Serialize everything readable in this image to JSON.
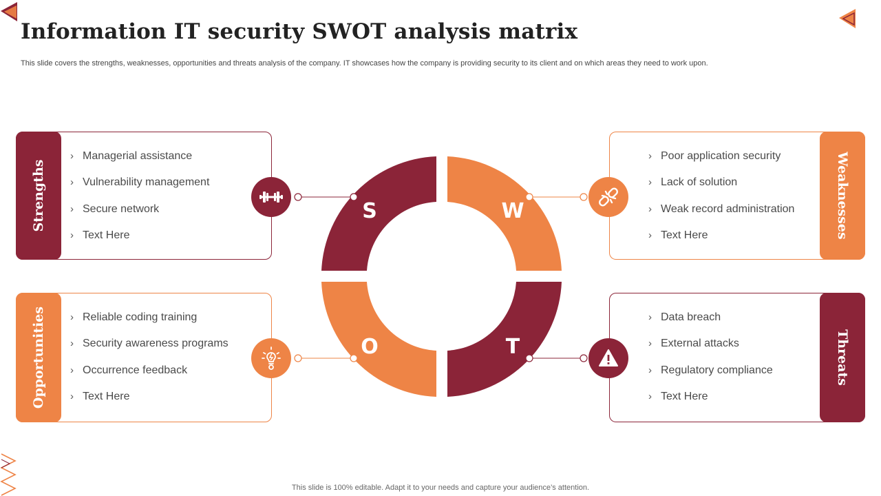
{
  "title": "Information IT security SWOT analysis matrix",
  "subtitle": "This slide covers the strengths, weaknesses, opportunities and threats analysis of the company. IT showcases how the company is providing security to its client and on which areas they need to work upon.",
  "footer": "This slide is 100% editable. Adapt it to your needs and capture your audience’s attention.",
  "colors": {
    "maroon": "#8b2438",
    "orange": "#ee8446"
  },
  "quadrants": {
    "strengths": {
      "label": "Strengths",
      "letter": "S",
      "color": "#8b2438",
      "icon": "dumbbell-icon",
      "items": [
        "Managerial assistance",
        "Vulnerability management",
        "Secure network",
        "Text Here"
      ]
    },
    "weaknesses": {
      "label": "Weaknesses",
      "letter": "W",
      "color": "#ee8446",
      "icon": "broken-link-icon",
      "items": [
        "Poor application security",
        "Lack of solution",
        "Weak record administration",
        "Text Here"
      ]
    },
    "opportunities": {
      "label": "Opportunities",
      "letter": "O",
      "color": "#ee8446",
      "icon": "lightbulb-gear-icon",
      "items": [
        "Reliable coding training",
        "Security awareness programs",
        "Occurrence feedback",
        "Text Here"
      ]
    },
    "threats": {
      "label": "Threats",
      "letter": "T",
      "color": "#8b2438",
      "icon": "warning-icon",
      "items": [
        "Data breach",
        "External attacks",
        "Regulatory compliance",
        "Text Here"
      ]
    }
  },
  "bullet": "›"
}
